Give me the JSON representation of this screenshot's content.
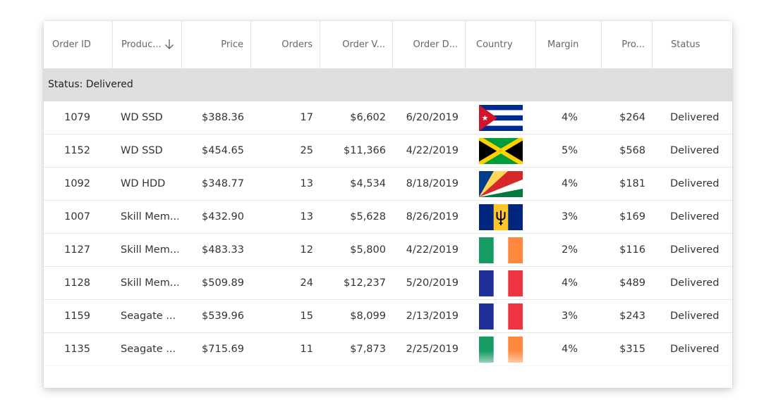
{
  "grid": {
    "columns": [
      {
        "key": "id",
        "label": "Order ID"
      },
      {
        "key": "product",
        "label": "Produc..."
      },
      {
        "key": "price",
        "label": "Price"
      },
      {
        "key": "orders",
        "label": "Orders"
      },
      {
        "key": "value",
        "label": "Order V..."
      },
      {
        "key": "date",
        "label": "Order D..."
      },
      {
        "key": "country",
        "label": "Country"
      },
      {
        "key": "margin",
        "label": "Margin"
      },
      {
        "key": "profit",
        "label": "Pro..."
      },
      {
        "key": "status",
        "label": "Status"
      }
    ],
    "sort_icon": "arrow-down-icon",
    "group_label": "Status: Delivered",
    "rows": [
      {
        "id": "1079",
        "product": "WD SSD",
        "price": "$388.36",
        "orders": "17",
        "value": "$6,602",
        "date": "6/20/2019",
        "flag": "cuba-flag-icon",
        "margin": "4%",
        "profit": "$264",
        "status": "Delivered"
      },
      {
        "id": "1152",
        "product": "WD SSD",
        "price": "$454.65",
        "orders": "25",
        "value": "$11,366",
        "date": "4/22/2019",
        "flag": "jamaica-flag-icon",
        "margin": "5%",
        "profit": "$568",
        "status": "Delivered"
      },
      {
        "id": "1092",
        "product": "WD HDD",
        "price": "$348.77",
        "orders": "13",
        "value": "$4,534",
        "date": "8/18/2019",
        "flag": "seychelles-flag-icon",
        "margin": "4%",
        "profit": "$181",
        "status": "Delivered"
      },
      {
        "id": "1007",
        "product": "Skill Mem...",
        "price": "$432.90",
        "orders": "13",
        "value": "$5,628",
        "date": "8/26/2019",
        "flag": "barbados-flag-icon",
        "margin": "3%",
        "profit": "$169",
        "status": "Delivered"
      },
      {
        "id": "1127",
        "product": "Skill Mem...",
        "price": "$483.33",
        "orders": "12",
        "value": "$5,800",
        "date": "4/22/2019",
        "flag": "ireland-flag-icon",
        "margin": "2%",
        "profit": "$116",
        "status": "Delivered"
      },
      {
        "id": "1128",
        "product": "Skill Mem...",
        "price": "$509.89",
        "orders": "24",
        "value": "$12,237",
        "date": "5/20/2019",
        "flag": "france-flag-icon",
        "margin": "4%",
        "profit": "$489",
        "status": "Delivered"
      },
      {
        "id": "1159",
        "product": "Seagate ...",
        "price": "$539.96",
        "orders": "15",
        "value": "$8,099",
        "date": "2/13/2019",
        "flag": "france-flag-icon",
        "margin": "3%",
        "profit": "$243",
        "status": "Delivered"
      },
      {
        "id": "1135",
        "product": "Seagate ...",
        "price": "$715.69",
        "orders": "11",
        "value": "$7,873",
        "date": "2/25/2019",
        "flag": "ireland-flag-icon",
        "margin": "4%",
        "profit": "$315",
        "status": "Delivered"
      }
    ],
    "colors": {
      "group_bg": "#dedede",
      "border": "#e4e4e4",
      "header_text": "#666666"
    }
  }
}
